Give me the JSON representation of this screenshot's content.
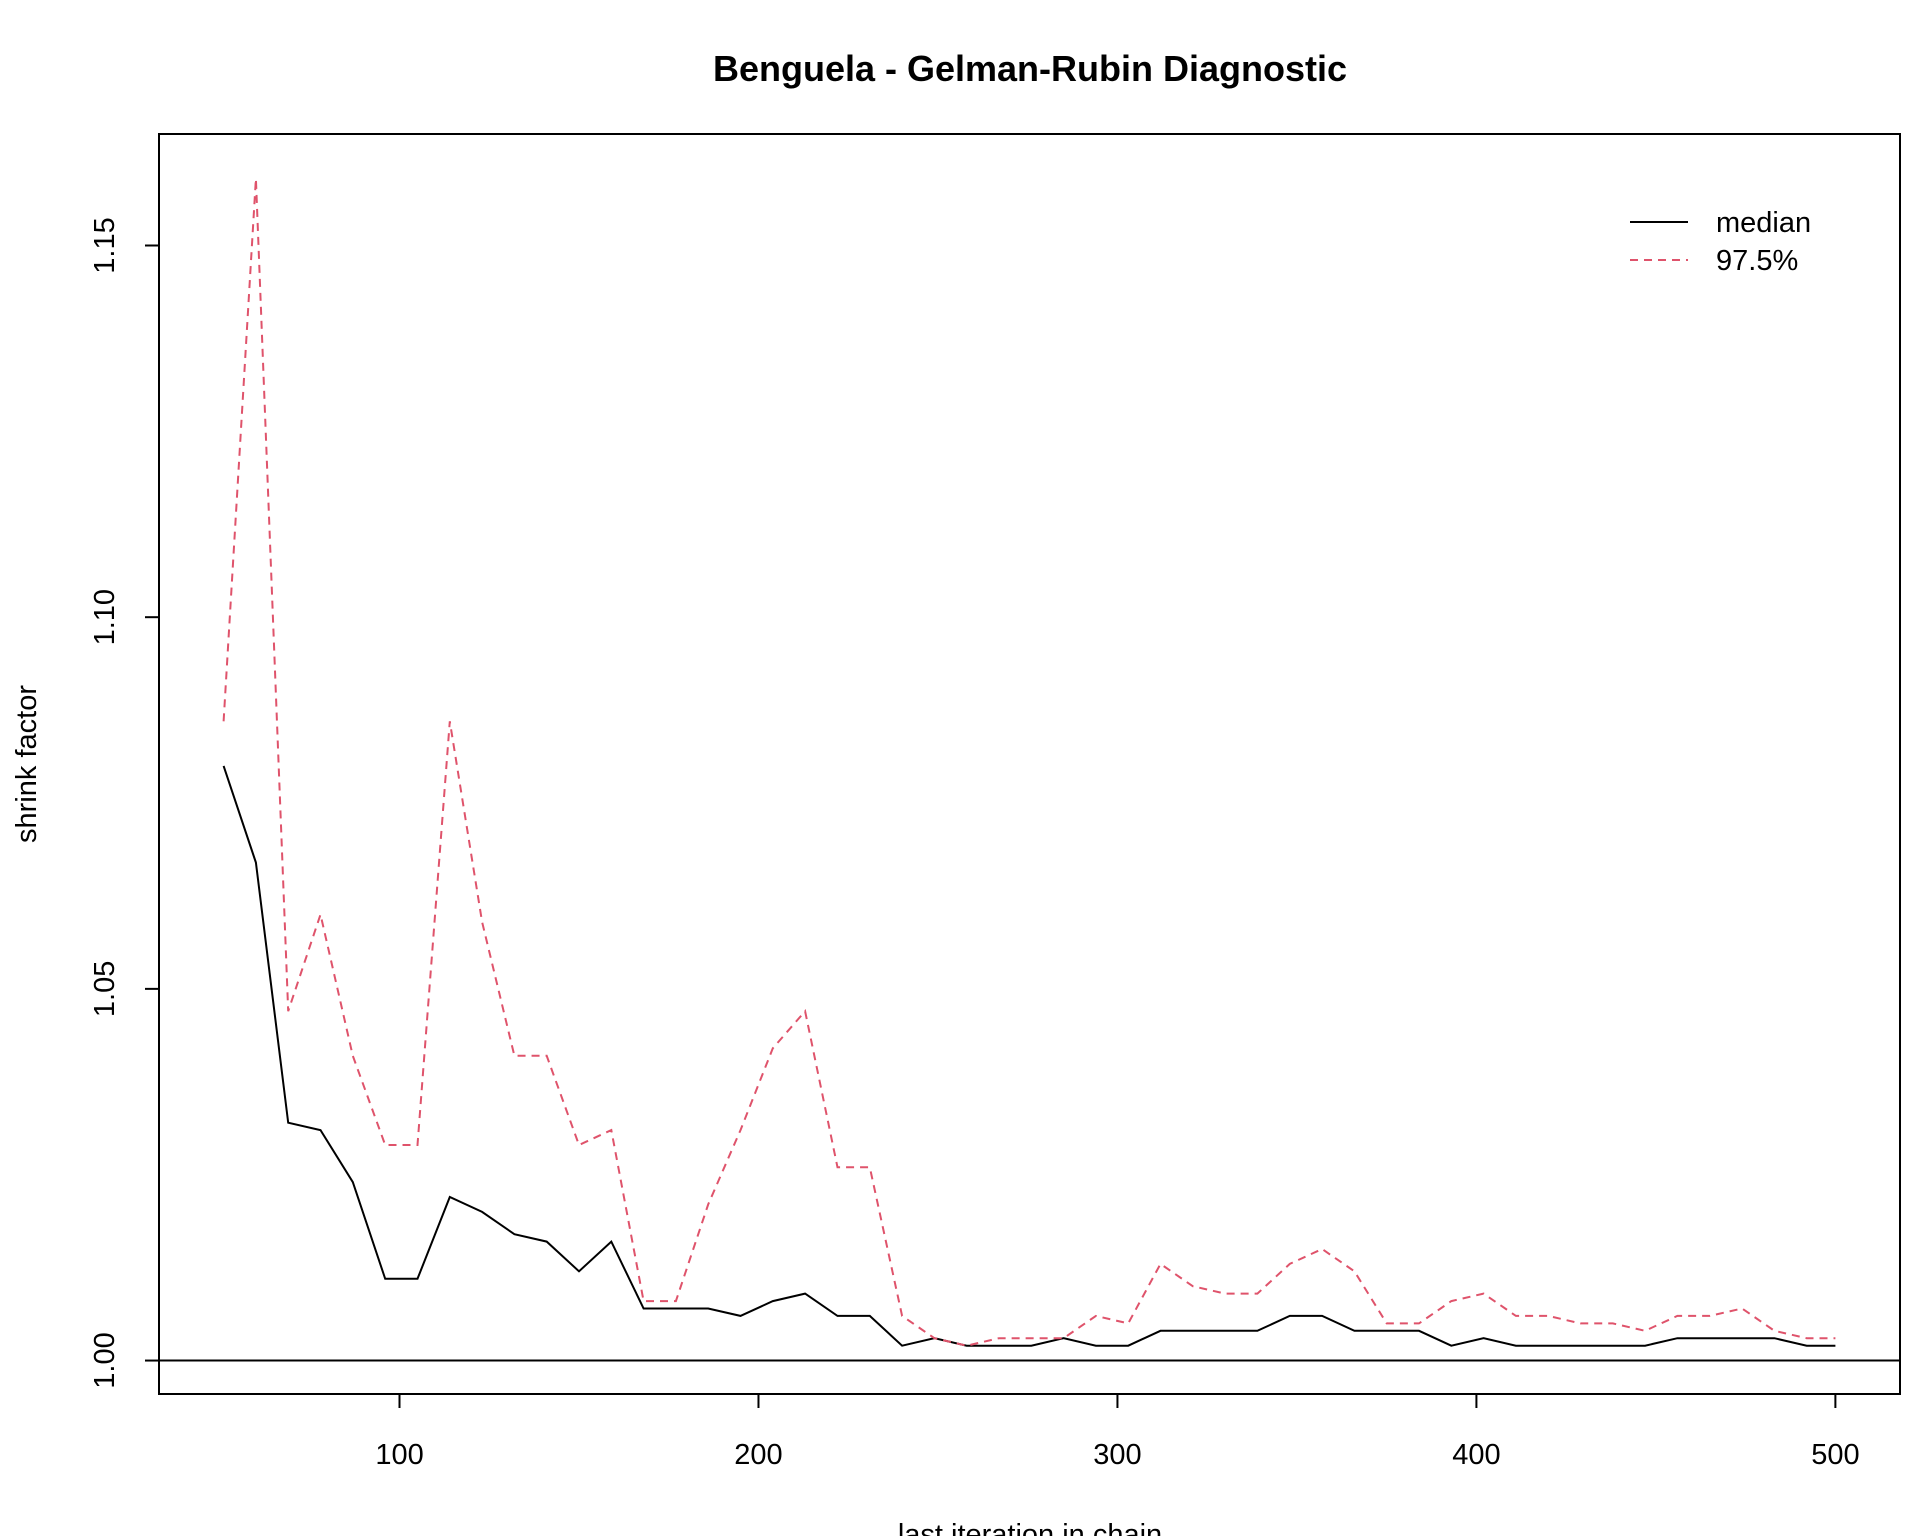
{
  "chart_data": {
    "type": "line",
    "title": "Benguela - Gelman-Rubin Diagnostic",
    "xlabel": "last iteration in chain",
    "ylabel": "shrink factor",
    "xlim": [
      33,
      518
    ],
    "ylim": [
      0.9955,
      1.165
    ],
    "x_ticks": [
      100,
      200,
      300,
      400,
      500
    ],
    "x_tick_labels": [
      "100",
      "200",
      "300",
      "400",
      "500"
    ],
    "y_ticks": [
      1.0,
      1.05,
      1.1,
      1.15
    ],
    "y_tick_labels": [
      "1.00",
      "1.05",
      "1.10",
      "1.15"
    ],
    "reference_line": 1.0,
    "grid": false,
    "legend": {
      "position": "top-right",
      "entries": [
        "median",
        "97.5%"
      ]
    },
    "x": [
      51,
      60,
      69,
      78,
      87,
      96,
      105,
      114,
      123,
      132,
      141,
      150,
      159,
      168,
      177,
      186,
      195,
      204,
      213,
      222,
      231,
      240,
      249,
      258,
      267,
      276,
      285,
      294,
      303,
      312,
      321,
      330,
      339,
      348,
      357,
      366,
      375,
      384,
      393,
      402,
      411,
      420,
      429,
      438,
      447,
      456,
      465,
      474,
      483,
      492,
      500
    ],
    "series": [
      {
        "name": "median",
        "color": "#000000",
        "dash": "solid",
        "values": [
          1.08,
          1.067,
          1.032,
          1.031,
          1.024,
          1.011,
          1.011,
          1.022,
          1.02,
          1.017,
          1.016,
          1.012,
          1.016,
          1.007,
          1.007,
          1.007,
          1.006,
          1.008,
          1.009,
          1.006,
          1.006,
          1.002,
          1.003,
          1.002,
          1.002,
          1.002,
          1.003,
          1.002,
          1.002,
          1.004,
          1.004,
          1.004,
          1.004,
          1.006,
          1.006,
          1.004,
          1.004,
          1.004,
          1.002,
          1.003,
          1.002,
          1.002,
          1.002,
          1.002,
          1.002,
          1.003,
          1.003,
          1.003,
          1.003,
          1.002,
          1.002
        ]
      },
      {
        "name": "97.5%",
        "color": "#DF536B",
        "dash": "dashed",
        "values": [
          1.086,
          1.159,
          1.047,
          1.06,
          1.041,
          1.029,
          1.029,
          1.086,
          1.059,
          1.041,
          1.041,
          1.029,
          1.031,
          1.008,
          1.008,
          1.021,
          1.031,
          1.042,
          1.047,
          1.026,
          1.026,
          1.006,
          1.003,
          1.002,
          1.003,
          1.003,
          1.003,
          1.006,
          1.005,
          1.013,
          1.01,
          1.009,
          1.009,
          1.013,
          1.015,
          1.012,
          1.005,
          1.005,
          1.008,
          1.009,
          1.006,
          1.006,
          1.005,
          1.005,
          1.004,
          1.006,
          1.006,
          1.007,
          1.004,
          1.003,
          1.003
        ]
      }
    ]
  }
}
